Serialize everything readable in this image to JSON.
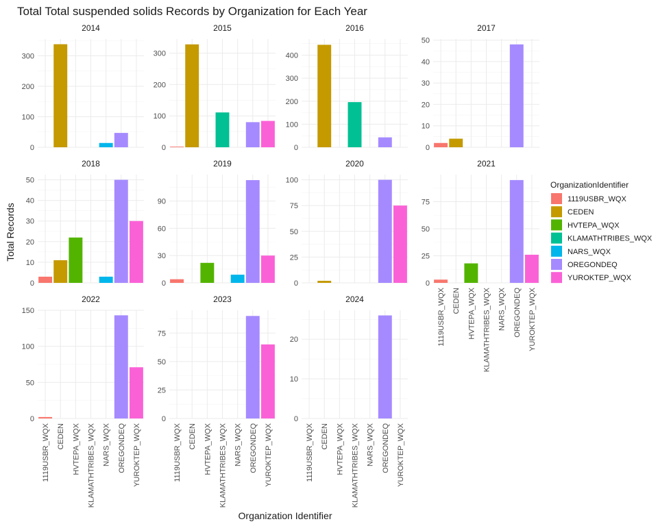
{
  "chart_data": {
    "type": "bar",
    "title": "Total Total suspended solids Records by Organization for Each Year",
    "xlabel": "Organization Identifier",
    "ylabel": "Total Records",
    "grid": true,
    "legend": {
      "title": "OrganizationIdentifier",
      "placement": "right",
      "entries": [
        {
          "name": "1119USBR_WQX",
          "color": "#F8766D"
        },
        {
          "name": "CEDEN",
          "color": "#C49A00"
        },
        {
          "name": "HVTEPA_WQX",
          "color": "#53B400"
        },
        {
          "name": "KLAMATHTRIBES_WQX",
          "color": "#00C094"
        },
        {
          "name": "NARS_WQX",
          "color": "#00B6EB"
        },
        {
          "name": "OREGONDEQ",
          "color": "#A58AFF"
        },
        {
          "name": "YUROKTEP_WQX",
          "color": "#FB61D7"
        }
      ]
    },
    "categories": [
      "1119USBR_WQX",
      "CEDEN",
      "HVTEPA_WQX",
      "KLAMATHTRIBES_WQX",
      "NARS_WQX",
      "OREGONDEQ",
      "YUROKTEP_WQX"
    ],
    "facets": [
      {
        "year": "2014",
        "ylim": [
          0,
          355
        ],
        "yticks": [
          0,
          100,
          200,
          300
        ],
        "values": [
          null,
          338,
          null,
          null,
          14,
          47,
          null
        ]
      },
      {
        "year": "2015",
        "ylim": [
          0,
          345
        ],
        "yticks": [
          0,
          100,
          200,
          300
        ],
        "values": [
          2,
          328,
          null,
          111,
          null,
          80,
          84
        ]
      },
      {
        "year": "2016",
        "ylim": [
          0,
          470
        ],
        "yticks": [
          0,
          100,
          200,
          300,
          400
        ],
        "values": [
          null,
          445,
          null,
          196,
          null,
          43,
          null
        ]
      },
      {
        "year": "2017",
        "ylim": [
          0,
          50.5
        ],
        "yticks": [
          0,
          10,
          20,
          30,
          40,
          50
        ],
        "values": [
          2,
          4,
          null,
          null,
          null,
          48,
          null
        ]
      },
      {
        "year": "2018",
        "ylim": [
          0,
          52.5
        ],
        "yticks": [
          0,
          10,
          20,
          30,
          40,
          50
        ],
        "values": [
          3,
          11,
          22,
          null,
          3,
          50,
          30
        ]
      },
      {
        "year": "2019",
        "ylim": [
          0,
          119
        ],
        "yticks": [
          0,
          30,
          60,
          90
        ],
        "values": [
          4,
          null,
          22,
          null,
          9,
          113,
          30
        ]
      },
      {
        "year": "2020",
        "ylim": [
          0,
          105
        ],
        "yticks": [
          0,
          25,
          50,
          75,
          100
        ],
        "values": [
          null,
          2,
          null,
          null,
          null,
          100,
          75
        ]
      },
      {
        "year": "2021",
        "ylim": [
          0,
          100
        ],
        "yticks": [
          0,
          25,
          50,
          75
        ],
        "values": [
          3,
          null,
          18,
          null,
          null,
          95,
          26
        ]
      },
      {
        "year": "2022",
        "ylim": [
          0,
          150
        ],
        "yticks": [
          0,
          50,
          100,
          150
        ],
        "values": [
          2,
          null,
          null,
          null,
          null,
          143,
          71
        ]
      },
      {
        "year": "2023",
        "ylim": [
          0,
          95
        ],
        "yticks": [
          0,
          25,
          50,
          75
        ],
        "values": [
          null,
          null,
          null,
          null,
          null,
          90,
          65
        ]
      },
      {
        "year": "2024",
        "ylim": [
          0,
          27.3
        ],
        "yticks": [
          0,
          10,
          20
        ],
        "values": [
          null,
          null,
          null,
          null,
          null,
          26,
          null
        ]
      }
    ]
  }
}
